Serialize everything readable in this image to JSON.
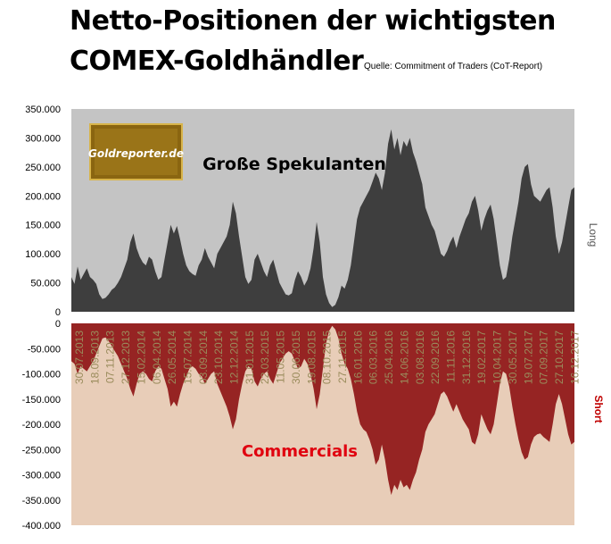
{
  "header": {
    "title_line1": "Netto-Positionen der wichtigsten",
    "title_line2": "COMEX-Goldhändler",
    "source": "Quelle: Commitment of Traders (CoT-Report)"
  },
  "logo": {
    "text": "Goldreporter.de"
  },
  "colors": {
    "top_bg": "#c4c4c4",
    "long_fill": "#3e3e3e",
    "bottom_bg": "#e8cdb8",
    "short_fill": "#962423",
    "commercials_label": "#e0000f",
    "short_label": "#c00000",
    "date_labels": "#9a8c5c"
  },
  "chart_data": [
    {
      "type": "area",
      "annotation": "Große Spekulanten",
      "side_label": "Long",
      "ylim": [
        0,
        350000
      ],
      "yticks": [
        "0",
        "50.000",
        "100.000",
        "150.000",
        "200.000",
        "250.000",
        "300.000",
        "350.000"
      ],
      "grid": false,
      "values": [
        60000,
        48000,
        78000,
        55000,
        65000,
        75000,
        60000,
        55000,
        48000,
        30000,
        22000,
        24000,
        30000,
        38000,
        42000,
        50000,
        60000,
        75000,
        90000,
        120000,
        135000,
        110000,
        95000,
        85000,
        80000,
        95000,
        90000,
        70000,
        55000,
        60000,
        90000,
        120000,
        150000,
        135000,
        148000,
        125000,
        100000,
        80000,
        70000,
        65000,
        62000,
        80000,
        90000,
        110000,
        95000,
        85000,
        75000,
        100000,
        110000,
        120000,
        130000,
        150000,
        190000,
        170000,
        130000,
        95000,
        60000,
        48000,
        55000,
        90000,
        100000,
        85000,
        70000,
        60000,
        80000,
        90000,
        70000,
        50000,
        40000,
        30000,
        28000,
        32000,
        55000,
        70000,
        60000,
        45000,
        55000,
        75000,
        110000,
        155000,
        120000,
        60000,
        30000,
        15000,
        8000,
        12000,
        25000,
        45000,
        40000,
        55000,
        80000,
        120000,
        160000,
        180000,
        190000,
        200000,
        210000,
        225000,
        240000,
        230000,
        210000,
        240000,
        290000,
        315000,
        280000,
        300000,
        270000,
        295000,
        285000,
        300000,
        275000,
        260000,
        240000,
        220000,
        180000,
        165000,
        150000,
        140000,
        120000,
        100000,
        95000,
        105000,
        120000,
        130000,
        110000,
        130000,
        145000,
        160000,
        170000,
        190000,
        200000,
        175000,
        140000,
        160000,
        175000,
        185000,
        160000,
        120000,
        80000,
        55000,
        60000,
        90000,
        130000,
        160000,
        190000,
        230000,
        250000,
        255000,
        220000,
        200000,
        195000,
        190000,
        200000,
        210000,
        215000,
        180000,
        130000,
        100000,
        120000,
        150000,
        180000,
        210000,
        215000
      ]
    },
    {
      "type": "area",
      "annotation": "Commercials",
      "side_label": "Short",
      "ylim": [
        -400000,
        0
      ],
      "yticks": [
        "0",
        "-50.000",
        "-100.000",
        "-150.000",
        "-200.000",
        "-250.000",
        "-300.000",
        "-350.000",
        "-400.000"
      ],
      "grid": false,
      "x_labels": [
        "30.07.2013",
        "18.09.2013",
        "07.11.2013",
        "27.12.2013",
        "15.02.2014",
        "06.04.2014",
        "26.05.2014",
        "15.07.2014",
        "03.09.2014",
        "23.10.2014",
        "12.12.2014",
        "31.01.2015",
        "22.03.2015",
        "11.05.2015",
        "30.06.2015",
        "19.08.2015",
        "08.10.2015",
        "27.11.2015",
        "16.01.2016",
        "06.03.2016",
        "25.04.2016",
        "14.06.2016",
        "03.08.2016",
        "22.09.2016",
        "11.11.2016",
        "31.12.2016",
        "19.02.2017",
        "10.04.2017",
        "30.05.2017",
        "19.07.2017",
        "07.09.2017",
        "27.10.2017",
        "16.12.2017"
      ],
      "values": [
        -75000,
        -80000,
        -100000,
        -85000,
        -90000,
        -95000,
        -85000,
        -75000,
        -60000,
        -45000,
        -30000,
        -28000,
        -35000,
        -45000,
        -55000,
        -65000,
        -80000,
        -95000,
        -110000,
        -130000,
        -145000,
        -120000,
        -100000,
        -95000,
        -100000,
        -110000,
        -115000,
        -95000,
        -85000,
        -90000,
        -110000,
        -130000,
        -165000,
        -155000,
        -165000,
        -140000,
        -120000,
        -105000,
        -90000,
        -85000,
        -90000,
        -100000,
        -105000,
        -120000,
        -110000,
        -100000,
        -95000,
        -120000,
        -135000,
        -150000,
        -165000,
        -185000,
        -210000,
        -190000,
        -150000,
        -120000,
        -95000,
        -85000,
        -90000,
        -115000,
        -125000,
        -110000,
        -100000,
        -95000,
        -110000,
        -120000,
        -100000,
        -80000,
        -70000,
        -60000,
        -55000,
        -60000,
        -75000,
        -90000,
        -85000,
        -70000,
        -80000,
        -100000,
        -130000,
        -170000,
        -140000,
        -90000,
        -40000,
        -15000,
        -5000,
        -12000,
        -30000,
        -60000,
        -80000,
        -90000,
        -110000,
        -140000,
        -175000,
        -200000,
        -210000,
        -215000,
        -230000,
        -250000,
        -280000,
        -270000,
        -240000,
        -270000,
        -310000,
        -340000,
        -320000,
        -330000,
        -310000,
        -325000,
        -320000,
        -330000,
        -310000,
        -295000,
        -270000,
        -250000,
        -215000,
        -200000,
        -190000,
        -180000,
        -160000,
        -140000,
        -135000,
        -145000,
        -160000,
        -175000,
        -160000,
        -175000,
        -190000,
        -200000,
        -210000,
        -235000,
        -240000,
        -220000,
        -180000,
        -195000,
        -210000,
        -220000,
        -200000,
        -160000,
        -120000,
        -95000,
        -100000,
        -125000,
        -165000,
        -200000,
        -230000,
        -255000,
        -270000,
        -265000,
        -240000,
        -225000,
        -220000,
        -218000,
        -225000,
        -230000,
        -235000,
        -200000,
        -160000,
        -140000,
        -160000,
        -190000,
        -220000,
        -240000,
        -235000
      ]
    }
  ]
}
